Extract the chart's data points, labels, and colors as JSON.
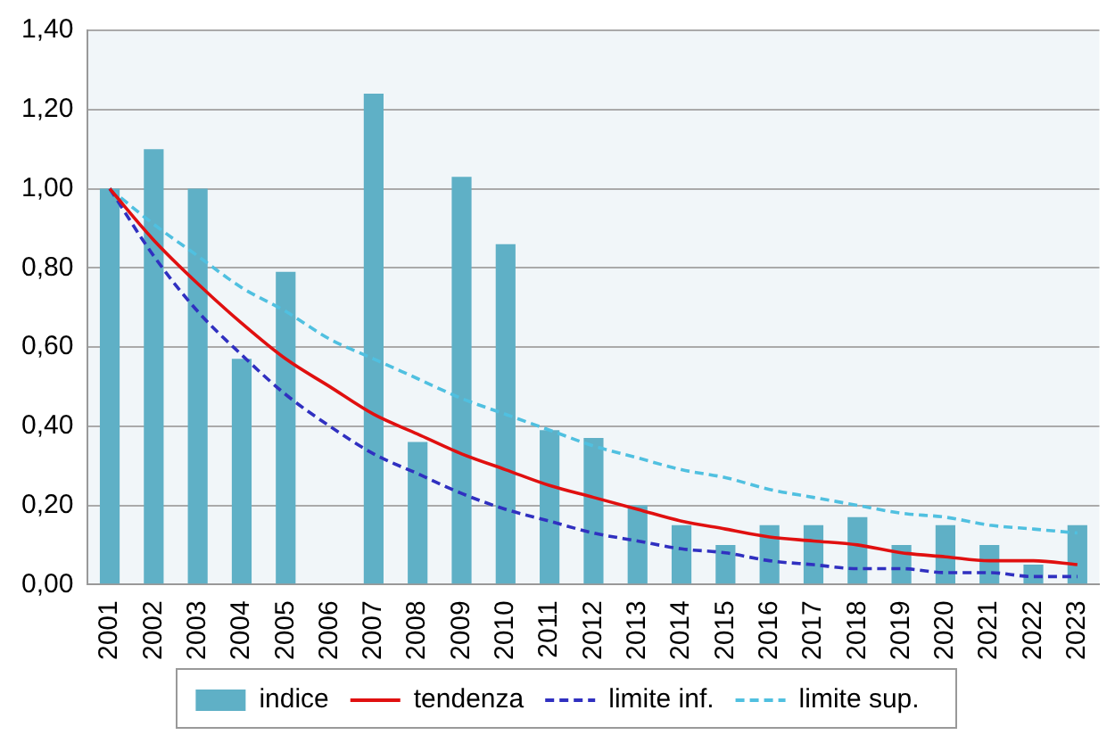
{
  "chart_data": {
    "type": "bar",
    "categories": [
      "2001",
      "2002",
      "2003",
      "2004",
      "2005",
      "2006",
      "2007",
      "2008",
      "2009",
      "2010",
      "2011",
      "2012",
      "2013",
      "2014",
      "2015",
      "2016",
      "2017",
      "2018",
      "2019",
      "2020",
      "2021",
      "2022",
      "2023"
    ],
    "series": [
      {
        "name": "indice",
        "color": "#5fb0c6",
        "values": [
          1.0,
          1.1,
          1.0,
          0.57,
          0.79,
          null,
          1.24,
          0.36,
          1.03,
          0.86,
          0.39,
          0.37,
          0.2,
          0.15,
          0.1,
          0.15,
          0.15,
          0.17,
          0.1,
          0.15,
          0.1,
          0.05,
          0.15
        ]
      },
      {
        "name": "tendenza",
        "type": "line",
        "color": "#e01010",
        "line_style": "solid",
        "values": [
          1,
          0.87,
          0.76,
          0.66,
          0.57,
          0.5,
          0.43,
          0.38,
          0.33,
          0.29,
          0.25,
          0.22,
          0.19,
          0.16,
          0.14,
          0.12,
          0.11,
          0.1,
          0.08,
          0.07,
          0.06,
          0.06,
          0.05
        ]
      },
      {
        "name": "limite inf.",
        "type": "line",
        "color": "#3030c0",
        "line_style": "dashed",
        "values": [
          1,
          0.83,
          0.69,
          0.58,
          0.48,
          0.4,
          0.33,
          0.28,
          0.23,
          0.19,
          0.16,
          0.13,
          0.11,
          0.09,
          0.08,
          0.06,
          0.05,
          0.04,
          0.04,
          0.03,
          0.03,
          0.02,
          0.02
        ]
      },
      {
        "name": "limite sup.",
        "type": "line",
        "color": "#50c0e0",
        "line_style": "dashed",
        "values": [
          1,
          0.91,
          0.83,
          0.75,
          0.69,
          0.62,
          0.57,
          0.52,
          0.47,
          0.43,
          0.39,
          0.35,
          0.32,
          0.29,
          0.27,
          0.24,
          0.22,
          0.2,
          0.18,
          0.17,
          0.15,
          0.14,
          0.13
        ]
      }
    ],
    "ylim": [
      0,
      1.4
    ],
    "yticks": [
      {
        "value": 0,
        "label": "0,00"
      },
      {
        "value": 0.2,
        "label": "0,20"
      },
      {
        "value": 0.4,
        "label": "0,40"
      },
      {
        "value": 0.6,
        "label": "0,60"
      },
      {
        "value": 0.8,
        "label": "0,80"
      },
      {
        "value": 1.0,
        "label": "1,00"
      },
      {
        "value": 1.2,
        "label": "1,20"
      },
      {
        "value": 1.4,
        "label": "1,40"
      }
    ],
    "grid": "y",
    "legend": "bottom",
    "marker": "none"
  }
}
